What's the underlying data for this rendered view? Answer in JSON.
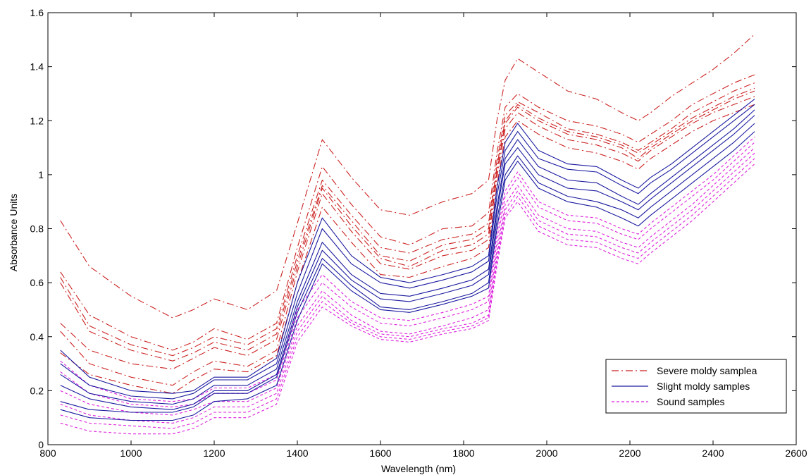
{
  "chart_data": {
    "type": "line",
    "xlabel": "Wavelength (nm)",
    "ylabel": "Absorbance Units",
    "xlim": [
      800,
      2600
    ],
    "ylim": [
      0,
      1.6
    ],
    "xticks": [
      "800",
      "1000",
      "1200",
      "1400",
      "1600",
      "1800",
      "2000",
      "2200",
      "2400",
      "2600"
    ],
    "yticks": [
      "0",
      "0.2",
      "0.4",
      "0.6",
      "0.8",
      "1",
      "1.2",
      "1.4",
      "1.6"
    ],
    "grid": false,
    "legend_position": "bottom-right",
    "legend": [
      {
        "label": "Severe moldy samplea",
        "color": "#cc2222",
        "style": "dash-dot"
      },
      {
        "label": "Slight moldy samples",
        "color": "#1a1aa0",
        "style": "solid"
      },
      {
        "label": "Sound samples",
        "color": "#dd22dd",
        "style": "dashed"
      }
    ],
    "wavelengths": [
      830,
      900,
      1000,
      1100,
      1150,
      1200,
      1280,
      1350,
      1400,
      1460,
      1530,
      1600,
      1670,
      1750,
      1820,
      1860,
      1880,
      1900,
      1930,
      1980,
      2050,
      2120,
      2180,
      2220,
      2250,
      2300,
      2350,
      2400,
      2450,
      2500
    ],
    "series": [
      {
        "group": "Severe moldy samplea",
        "color": "#cc2222",
        "style": "dash-dot",
        "values": [
          0.83,
          0.66,
          0.55,
          0.47,
          0.5,
          0.54,
          0.5,
          0.57,
          0.82,
          1.13,
          0.99,
          0.87,
          0.85,
          0.9,
          0.93,
          0.98,
          1.2,
          1.35,
          1.43,
          1.38,
          1.31,
          1.28,
          1.23,
          1.2,
          1.23,
          1.29,
          1.34,
          1.39,
          1.45,
          1.52
        ]
      },
      {
        "group": "Severe moldy samplea",
        "color": "#cc2222",
        "style": "dash-dot",
        "values": [
          0.64,
          0.48,
          0.4,
          0.35,
          0.38,
          0.43,
          0.39,
          0.45,
          0.73,
          1.03,
          0.89,
          0.77,
          0.74,
          0.8,
          0.81,
          0.86,
          1.08,
          1.25,
          1.3,
          1.25,
          1.2,
          1.18,
          1.15,
          1.12,
          1.15,
          1.2,
          1.26,
          1.3,
          1.34,
          1.37
        ]
      },
      {
        "group": "Severe moldy samplea",
        "color": "#cc2222",
        "style": "dash-dot",
        "values": [
          0.62,
          0.44,
          0.37,
          0.33,
          0.36,
          0.4,
          0.37,
          0.43,
          0.7,
          0.98,
          0.85,
          0.73,
          0.71,
          0.76,
          0.78,
          0.82,
          1.05,
          1.22,
          1.27,
          1.23,
          1.17,
          1.15,
          1.12,
          1.09,
          1.12,
          1.17,
          1.23,
          1.27,
          1.31,
          1.34
        ]
      },
      {
        "group": "Severe moldy samplea",
        "color": "#cc2222",
        "style": "dash-dot",
        "values": [
          0.6,
          0.42,
          0.35,
          0.31,
          0.34,
          0.38,
          0.35,
          0.41,
          0.68,
          0.96,
          0.83,
          0.7,
          0.68,
          0.74,
          0.76,
          0.8,
          1.03,
          1.2,
          1.26,
          1.21,
          1.16,
          1.14,
          1.11,
          1.08,
          1.11,
          1.16,
          1.21,
          1.25,
          1.29,
          1.32
        ]
      },
      {
        "group": "Severe moldy samplea",
        "color": "#cc2222",
        "style": "dash-dot",
        "values": [
          0.45,
          0.35,
          0.3,
          0.28,
          0.32,
          0.36,
          0.33,
          0.39,
          0.66,
          0.95,
          0.81,
          0.69,
          0.66,
          0.72,
          0.74,
          0.78,
          1.01,
          1.19,
          1.25,
          1.2,
          1.15,
          1.13,
          1.1,
          1.06,
          1.1,
          1.15,
          1.2,
          1.24,
          1.28,
          1.31
        ]
      },
      {
        "group": "Severe moldy samplea",
        "color": "#cc2222",
        "style": "dash-dot",
        "values": [
          0.42,
          0.3,
          0.25,
          0.22,
          0.27,
          0.31,
          0.29,
          0.35,
          0.64,
          0.93,
          0.79,
          0.67,
          0.65,
          0.7,
          0.72,
          0.76,
          0.99,
          1.17,
          1.23,
          1.18,
          1.13,
          1.11,
          1.08,
          1.05,
          1.09,
          1.14,
          1.19,
          1.23,
          1.26,
          1.29
        ]
      },
      {
        "group": "Severe moldy samplea",
        "color": "#cc2222",
        "style": "dash-dot",
        "values": [
          0.34,
          0.26,
          0.22,
          0.19,
          0.24,
          0.28,
          0.27,
          0.33,
          0.6,
          0.88,
          0.75,
          0.63,
          0.62,
          0.66,
          0.69,
          0.73,
          0.96,
          1.14,
          1.2,
          1.15,
          1.1,
          1.08,
          1.05,
          1.02,
          1.06,
          1.11,
          1.16,
          1.2,
          1.23,
          1.26
        ]
      },
      {
        "group": "Slight moldy samples",
        "color": "#1a1aa0",
        "style": "solid",
        "values": [
          0.35,
          0.25,
          0.2,
          0.19,
          0.2,
          0.25,
          0.25,
          0.32,
          0.6,
          0.84,
          0.7,
          0.62,
          0.6,
          0.63,
          0.66,
          0.7,
          0.95,
          1.12,
          1.19,
          1.09,
          1.04,
          1.03,
          0.98,
          0.95,
          0.99,
          1.04,
          1.1,
          1.16,
          1.22,
          1.28
        ]
      },
      {
        "group": "Slight moldy samples",
        "color": "#1a1aa0",
        "style": "solid",
        "values": [
          0.3,
          0.22,
          0.18,
          0.17,
          0.19,
          0.24,
          0.24,
          0.3,
          0.56,
          0.8,
          0.67,
          0.6,
          0.58,
          0.61,
          0.64,
          0.68,
          0.92,
          1.09,
          1.16,
          1.06,
          1.02,
          1.01,
          0.96,
          0.93,
          0.97,
          1.02,
          1.08,
          1.14,
          1.2,
          1.26
        ]
      },
      {
        "group": "Slight moldy samples",
        "color": "#1a1aa0",
        "style": "solid",
        "values": [
          0.26,
          0.19,
          0.16,
          0.15,
          0.17,
          0.22,
          0.22,
          0.28,
          0.53,
          0.75,
          0.63,
          0.56,
          0.55,
          0.58,
          0.61,
          0.65,
          0.88,
          1.06,
          1.13,
          1.03,
          0.98,
          0.97,
          0.92,
          0.89,
          0.93,
          0.99,
          1.05,
          1.11,
          1.17,
          1.24
        ]
      },
      {
        "group": "Slight moldy samples",
        "color": "#1a1aa0",
        "style": "solid",
        "values": [
          0.22,
          0.17,
          0.14,
          0.13,
          0.15,
          0.2,
          0.2,
          0.26,
          0.51,
          0.72,
          0.61,
          0.54,
          0.53,
          0.56,
          0.59,
          0.63,
          0.86,
          1.04,
          1.1,
          1.0,
          0.95,
          0.94,
          0.9,
          0.87,
          0.91,
          0.97,
          1.03,
          1.09,
          1.15,
          1.22
        ]
      },
      {
        "group": "Slight moldy samples",
        "color": "#1a1aa0",
        "style": "solid",
        "values": [
          0.16,
          0.13,
          0.12,
          0.12,
          0.14,
          0.19,
          0.19,
          0.25,
          0.49,
          0.69,
          0.59,
          0.51,
          0.5,
          0.53,
          0.56,
          0.6,
          0.83,
          1.0,
          1.07,
          0.97,
          0.92,
          0.9,
          0.87,
          0.84,
          0.88,
          0.94,
          1.0,
          1.06,
          1.12,
          1.19
        ]
      },
      {
        "group": "Slight moldy samples",
        "color": "#1a1aa0",
        "style": "solid",
        "values": [
          0.13,
          0.1,
          0.09,
          0.09,
          0.11,
          0.16,
          0.17,
          0.22,
          0.46,
          0.67,
          0.57,
          0.5,
          0.49,
          0.52,
          0.55,
          0.58,
          0.8,
          0.98,
          1.05,
          0.95,
          0.9,
          0.88,
          0.84,
          0.81,
          0.85,
          0.91,
          0.97,
          1.03,
          1.09,
          1.16
        ]
      },
      {
        "group": "Sound samples",
        "color": "#dd22dd",
        "style": "dashed",
        "values": [
          0.31,
          0.22,
          0.17,
          0.16,
          0.17,
          0.21,
          0.21,
          0.26,
          0.5,
          0.63,
          0.53,
          0.47,
          0.46,
          0.49,
          0.52,
          0.55,
          0.78,
          0.94,
          1.01,
          0.9,
          0.85,
          0.84,
          0.8,
          0.78,
          0.82,
          0.88,
          0.94,
          1.0,
          1.07,
          1.14
        ]
      },
      {
        "group": "Sound samples",
        "color": "#dd22dd",
        "style": "dashed",
        "values": [
          0.27,
          0.19,
          0.15,
          0.14,
          0.15,
          0.19,
          0.19,
          0.24,
          0.47,
          0.6,
          0.51,
          0.45,
          0.44,
          0.47,
          0.5,
          0.53,
          0.75,
          0.92,
          0.99,
          0.88,
          0.83,
          0.82,
          0.78,
          0.76,
          0.8,
          0.86,
          0.92,
          0.98,
          1.05,
          1.12
        ]
      },
      {
        "group": "Sound samples",
        "color": "#dd22dd",
        "style": "dashed",
        "values": [
          0.2,
          0.15,
          0.12,
          0.11,
          0.13,
          0.16,
          0.16,
          0.21,
          0.44,
          0.57,
          0.48,
          0.42,
          0.41,
          0.44,
          0.47,
          0.5,
          0.72,
          0.89,
          0.96,
          0.85,
          0.8,
          0.79,
          0.75,
          0.73,
          0.77,
          0.83,
          0.89,
          0.96,
          1.03,
          1.1
        ]
      },
      {
        "group": "Sound samples",
        "color": "#dd22dd",
        "style": "dashed",
        "values": [
          0.15,
          0.11,
          0.09,
          0.08,
          0.1,
          0.14,
          0.14,
          0.19,
          0.42,
          0.55,
          0.46,
          0.41,
          0.4,
          0.43,
          0.45,
          0.48,
          0.7,
          0.87,
          0.94,
          0.83,
          0.78,
          0.77,
          0.73,
          0.71,
          0.75,
          0.81,
          0.87,
          0.94,
          1.01,
          1.08
        ]
      },
      {
        "group": "Sound samples",
        "color": "#dd22dd",
        "style": "dashed",
        "values": [
          0.11,
          0.08,
          0.07,
          0.06,
          0.08,
          0.12,
          0.12,
          0.17,
          0.4,
          0.53,
          0.45,
          0.4,
          0.39,
          0.42,
          0.44,
          0.47,
          0.68,
          0.85,
          0.92,
          0.81,
          0.76,
          0.75,
          0.71,
          0.69,
          0.73,
          0.79,
          0.85,
          0.92,
          0.99,
          1.06
        ]
      },
      {
        "group": "Sound samples",
        "color": "#dd22dd",
        "style": "dashed",
        "values": [
          0.08,
          0.05,
          0.04,
          0.04,
          0.06,
          0.1,
          0.1,
          0.15,
          0.38,
          0.51,
          0.44,
          0.39,
          0.38,
          0.41,
          0.43,
          0.46,
          0.66,
          0.84,
          0.9,
          0.79,
          0.74,
          0.73,
          0.69,
          0.67,
          0.71,
          0.77,
          0.83,
          0.9,
          0.97,
          1.04
        ]
      }
    ]
  }
}
